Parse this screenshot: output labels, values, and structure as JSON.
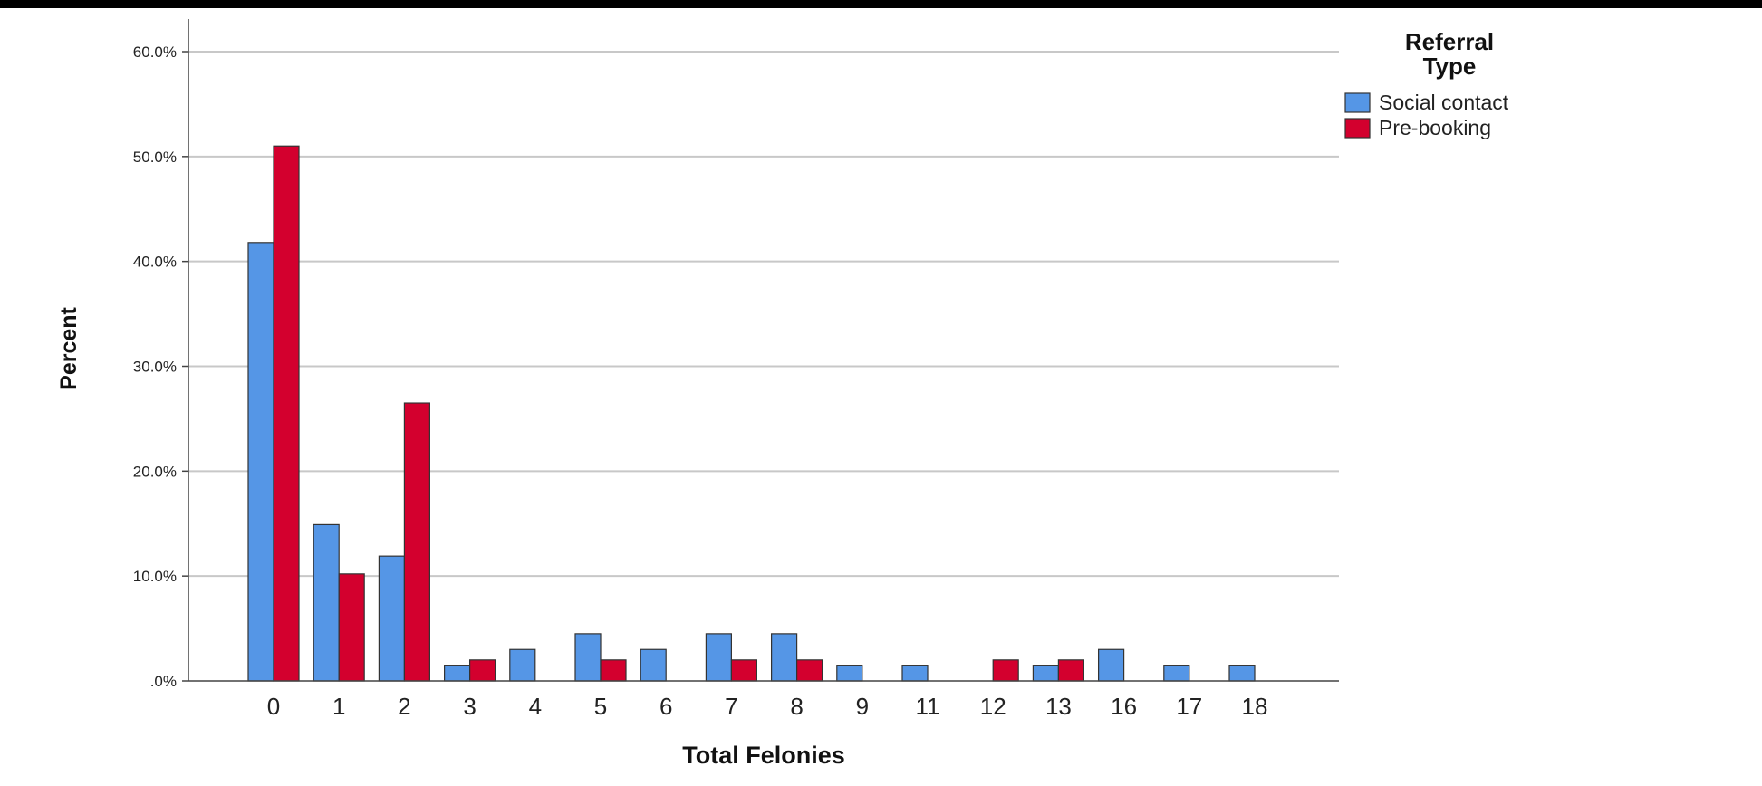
{
  "chart_data": {
    "type": "bar",
    "xlabel": "Total Felonies",
    "ylabel": "Percent",
    "categories": [
      "0",
      "1",
      "2",
      "3",
      "4",
      "5",
      "6",
      "7",
      "8",
      "9",
      "11",
      "12",
      "13",
      "16",
      "17",
      "18"
    ],
    "series": [
      {
        "name": "Social contact",
        "color": "#5596e6",
        "values": [
          41.8,
          14.9,
          11.9,
          1.5,
          3.0,
          4.5,
          3.0,
          4.5,
          4.5,
          1.5,
          1.5,
          0.0,
          1.5,
          3.0,
          1.5,
          1.5
        ]
      },
      {
        "name": "Pre-booking",
        "color": "#d3002e",
        "values": [
          51.0,
          10.2,
          26.5,
          2.0,
          0.0,
          2.0,
          0.0,
          2.0,
          2.0,
          0.0,
          0.0,
          2.0,
          2.0,
          0.0,
          0.0,
          0.0
        ]
      }
    ],
    "ylim": [
      0,
      60
    ],
    "yticks": [
      0,
      10,
      20,
      30,
      40,
      50,
      60
    ],
    "ytick_labels": [
      ".0%",
      "10.0%",
      "20.0%",
      "30.0%",
      "40.0%",
      "50.0%",
      "60.0%"
    ],
    "grid": true,
    "legend_title": [
      "Referral",
      "Type"
    ],
    "legend_placement": "top-right"
  }
}
